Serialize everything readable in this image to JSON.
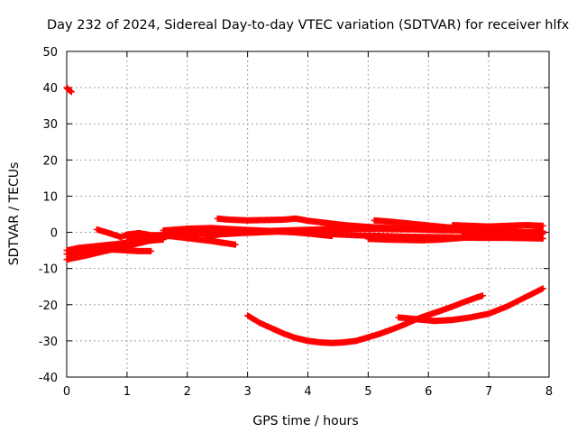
{
  "chart_data": {
    "type": "scatter",
    "title": "Day 232 of 2024, Sidereal Day-to-day VTEC variation (SDTVAR) for receiver hlfx",
    "xlabel": "GPS time / hours",
    "ylabel": "SDTVAR / TECUs",
    "xlim": [
      0,
      8
    ],
    "ylim": [
      -40,
      50
    ],
    "xticks": [
      0,
      1,
      2,
      3,
      4,
      5,
      6,
      7,
      8
    ],
    "yticks": [
      -40,
      -30,
      -20,
      -10,
      0,
      10,
      20,
      30,
      40,
      50
    ],
    "xtick_labels": [
      "0",
      "1",
      "2",
      "3",
      "4",
      "5",
      "6",
      "7",
      "8"
    ],
    "ytick_labels": [
      "-40",
      "-30",
      "-20",
      "-10",
      "0",
      "10",
      "20",
      "30",
      "40",
      "50"
    ],
    "grid": true,
    "legend": "none",
    "series_color": "#ff0000",
    "series": [
      {
        "x": [
          0.0,
          0.02,
          0.05,
          0.08
        ],
        "y": [
          40,
          39.6,
          39.2,
          38.8
        ]
      },
      {
        "x": [
          0.0,
          0.2,
          0.5,
          0.8,
          1.0,
          1.3,
          1.6
        ],
        "y": [
          -5,
          -4.3,
          -3.8,
          -3.3,
          -2.8,
          -2.4,
          -2.0
        ]
      },
      {
        "x": [
          0.0,
          0.3,
          0.6,
          0.9,
          1.2,
          1.5
        ],
        "y": [
          -6,
          -5.3,
          -4.5,
          -3.6,
          -2.6,
          -1.6
        ]
      },
      {
        "x": [
          0.0,
          0.3,
          0.6,
          0.9,
          1.2,
          1.5,
          1.8,
          2.1,
          2.4
        ],
        "y": [
          -7.5,
          -6.5,
          -5.3,
          -4.2,
          -3.0,
          -1.8,
          -0.5,
          0.3,
          0.9
        ]
      },
      {
        "x": [
          0.5,
          0.7,
          0.9,
          1.0,
          1.2,
          1.4,
          1.6,
          1.8,
          2.0,
          2.2,
          2.4,
          2.6,
          2.8
        ],
        "y": [
          0.8,
          -0.2,
          -1.3,
          -0.6,
          -0.2,
          -0.8,
          -0.8,
          -1.2,
          -1.6,
          -2.0,
          -2.4,
          -2.9,
          -3.4
        ]
      },
      {
        "x": [
          0.6,
          0.8,
          1.0,
          1.2,
          1.4
        ],
        "y": [
          -4.5,
          -4.8,
          -5.0,
          -5.2,
          -5.2
        ]
      },
      {
        "x": [
          1.0,
          1.4,
          1.8,
          2.2,
          2.6,
          3.0,
          3.4,
          3.8,
          4.2,
          4.6,
          5.0,
          5.4,
          5.8,
          6.2,
          6.6,
          7.0,
          7.4,
          7.9
        ],
        "y": [
          -1.5,
          -1.0,
          -0.6,
          -0.3,
          -0.1,
          0.2,
          0.4,
          0.6,
          0.8,
          1.0,
          1.0,
          0.9,
          0.8,
          0.6,
          0.5,
          0.4,
          0.2,
          0.0
        ]
      },
      {
        "x": [
          1.6,
          2.0,
          2.4,
          2.8,
          3.2,
          3.6,
          4.0,
          4.4,
          4.8,
          5.2,
          5.6,
          6.0,
          6.4,
          6.8,
          7.2,
          7.6,
          7.9
        ],
        "y": [
          0.5,
          1.0,
          1.2,
          0.8,
          0.5,
          0.2,
          -0.2,
          -0.5,
          -0.8,
          -1.0,
          -1.2,
          -1.3,
          -1.4,
          -1.5,
          -1.5,
          -1.6,
          -1.7
        ]
      },
      {
        "x": [
          2.3,
          2.6,
          2.9,
          3.2,
          3.5,
          3.8,
          4.1,
          4.4
        ],
        "y": [
          -1.0,
          -0.5,
          -0.2,
          0.0,
          0.2,
          0.0,
          -0.5,
          -1.0
        ]
      },
      {
        "x": [
          2.5,
          2.7,
          3.0,
          3.3,
          3.6,
          3.8,
          4.0,
          4.3,
          4.6,
          4.9,
          5.2,
          5.5,
          5.8,
          6.1,
          6.4
        ],
        "y": [
          3.8,
          3.5,
          3.3,
          3.4,
          3.5,
          3.8,
          3.2,
          2.6,
          2.0,
          1.6,
          1.3,
          1.1,
          1.0,
          1.0,
          1.0
        ]
      },
      {
        "x": [
          5.1,
          5.4,
          5.7,
          6.0,
          6.3,
          6.6
        ],
        "y": [
          3.3,
          2.9,
          2.4,
          1.9,
          1.4,
          1.0
        ]
      },
      {
        "x": [
          5.0,
          5.3,
          5.6,
          5.9,
          6.2,
          6.5,
          6.8,
          7.1,
          7.4,
          7.7,
          7.9
        ],
        "y": [
          -1.8,
          -2.0,
          -2.1,
          -2.2,
          -2.0,
          -1.6,
          -1.2,
          -0.8,
          -0.4,
          0.0,
          0.3
        ]
      },
      {
        "x": [
          6.4,
          6.7,
          7.0,
          7.3,
          7.6,
          7.9
        ],
        "y": [
          2.0,
          1.8,
          1.6,
          1.8,
          2.0,
          1.8
        ]
      },
      {
        "x": [
          6.6,
          6.9,
          7.2,
          7.5,
          7.8,
          7.9
        ],
        "y": [
          -0.5,
          -1.0,
          -1.3,
          -1.0,
          -0.6,
          -0.4
        ]
      },
      {
        "x": [
          3.0,
          3.2,
          3.4,
          3.6,
          3.8,
          4.0,
          4.2,
          4.4,
          4.6,
          4.8,
          5.0,
          5.2,
          5.4,
          5.6,
          5.8,
          6.0,
          6.2,
          6.4,
          6.6,
          6.8,
          6.9
        ],
        "y": [
          -23,
          -25,
          -26.5,
          -28,
          -29.2,
          -30,
          -30.4,
          -30.6,
          -30.4,
          -30,
          -29,
          -28,
          -26.8,
          -25.5,
          -24,
          -22.8,
          -21.7,
          -20.5,
          -19.2,
          -18,
          -17.5
        ]
      },
      {
        "x": [
          5.5,
          5.8,
          6.1,
          6.4,
          6.7,
          7.0,
          7.3,
          7.6,
          7.9
        ],
        "y": [
          -23.5,
          -24,
          -24.5,
          -24.2,
          -23.5,
          -22.5,
          -20.5,
          -18,
          -15.5
        ]
      }
    ]
  }
}
